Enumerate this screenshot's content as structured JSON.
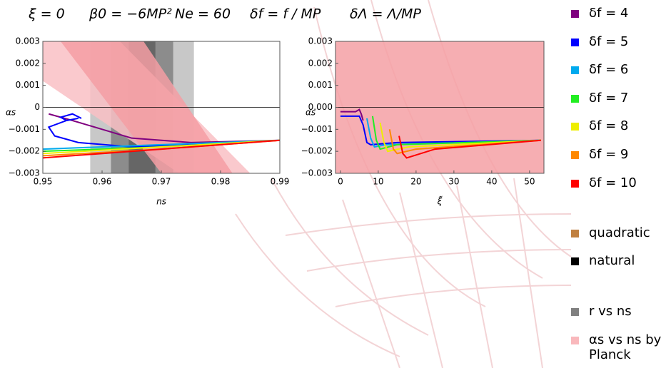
{
  "header": {
    "items": [
      "ξ = 0",
      "β0 = −6MP²",
      "Ne = 60",
      "δf = f / MP",
      "δΛ = Λ/MP"
    ]
  },
  "chart_data": [
    {
      "type": "line",
      "x_label": "ns",
      "y_label": "αs",
      "xlim": [
        0.95,
        0.99
      ],
      "ylim": [
        -0.003,
        0.003
      ],
      "xticks": [
        0.95,
        0.96,
        0.97,
        0.98,
        0.99
      ],
      "yticks": [
        {
          "value": -0.003,
          "label": "−0.003"
        },
        {
          "value": -0.002,
          "label": "−0.002"
        },
        {
          "value": -0.001,
          "label": "−0.001"
        },
        0,
        0.001,
        0.002,
        0.003
      ],
      "regions": [
        {
          "color": "#f9c0c4",
          "x": [
            0.95,
            0.963,
            0.985,
            0.973,
            0.95
          ],
          "y": [
            0.003,
            0.003,
            -0.003,
            -0.003,
            0.0012
          ]
        },
        {
          "color": "#f49ea3",
          "x": [
            0.953,
            0.967,
            0.982,
            0.97
          ],
          "y": [
            0.003,
            0.003,
            -0.003,
            -0.003
          ]
        }
      ],
      "vbands": [
        {
          "color": "#c8c8c8",
          "x": [
            0.958,
            0.9755
          ]
        },
        {
          "color": "#8c8c8c",
          "x": [
            0.9615,
            0.972
          ]
        },
        {
          "color": "#666666",
          "x": [
            0.9645,
            0.969
          ]
        }
      ],
      "series": [
        {
          "name": "δf = 4",
          "color": "#800080",
          "x": [
            0.951,
            0.955,
            0.96,
            0.965,
            0.975,
            0.99
          ],
          "values": [
            -0.0003,
            -0.0006,
            -0.001,
            -0.0014,
            -0.0016,
            -0.0015
          ]
        },
        {
          "name": "δf = 5",
          "color": "#0000ff",
          "x": [
            0.9565,
            0.955,
            0.953,
            0.954,
            0.956,
            0.954,
            0.951,
            0.952,
            0.956,
            0.965,
            0.975,
            0.99
          ],
          "values": [
            -0.0005,
            -0.0003,
            -0.00045,
            -0.0006,
            -0.0005,
            -0.0006,
            -0.0009,
            -0.0013,
            -0.0016,
            -0.0018,
            -0.0017,
            -0.0015
          ]
        },
        {
          "name": "δf = 6",
          "color": "#00aaee",
          "x": [
            0.95,
            0.97,
            0.99
          ],
          "values": [
            -0.0019,
            -0.0017,
            -0.0015
          ]
        },
        {
          "name": "δf = 7",
          "color": "#22ee22",
          "x": [
            0.95,
            0.97,
            0.99
          ],
          "values": [
            -0.002,
            -0.0018,
            -0.0015
          ]
        },
        {
          "name": "δf = 8",
          "color": "#eeee00",
          "x": [
            0.95,
            0.97,
            0.99
          ],
          "values": [
            -0.0021,
            -0.0018,
            -0.0015
          ]
        },
        {
          "name": "δf = 9",
          "color": "#ff8800",
          "x": [
            0.95,
            0.97,
            0.99
          ],
          "values": [
            -0.0022,
            -0.0019,
            -0.0015
          ]
        },
        {
          "name": "δf = 10",
          "color": "#ff0000",
          "x": [
            0.95,
            0.97,
            0.99
          ],
          "values": [
            -0.0023,
            -0.0019,
            -0.0015
          ]
        }
      ]
    },
    {
      "type": "line",
      "x_label": "ξ̃",
      "y_label": "αs",
      "xlim": [
        -1.3,
        53.8
      ],
      "ylim": [
        -0.003,
        0.003
      ],
      "xticks": [
        0,
        10,
        20,
        30,
        40,
        50
      ],
      "yticks": [
        {
          "value": -0.003,
          "label": "−0.003"
        },
        {
          "value": -0.002,
          "label": "−0.002"
        },
        {
          "value": -0.001,
          "label": "−0.001"
        },
        {
          "value": 0,
          "label": "0.000"
        },
        0.001,
        0.002,
        0.003
      ],
      "regions": [
        {
          "color": "#f4a0a4",
          "x": [
            -1.3,
            53.8,
            53.8,
            -1.3
          ],
          "y": [
            0.003,
            0.003,
            -0.003,
            -0.003
          ]
        }
      ],
      "series": [
        {
          "color": "#800080",
          "x": [
            0,
            4,
            5,
            5.5,
            6
          ],
          "values": [
            -0.0002,
            -0.0002,
            -0.0001,
            -0.0003,
            -0.0006
          ]
        },
        {
          "color": "#0000ff",
          "x": [
            0,
            5,
            6,
            7,
            8,
            15,
            53
          ],
          "values": [
            -0.0004,
            -0.0004,
            -0.0008,
            -0.0016,
            -0.0017,
            -0.0016,
            -0.0015
          ]
        },
        {
          "color": "#00aaee",
          "x": [
            7,
            8,
            9,
            12,
            53
          ],
          "values": [
            -0.0005,
            -0.0014,
            -0.0018,
            -0.0017,
            -0.0015
          ]
        },
        {
          "color": "#22ee22",
          "x": [
            8.5,
            9.5,
            10.5,
            15,
            53
          ],
          "values": [
            -0.0004,
            -0.0015,
            -0.0019,
            -0.0017,
            -0.0015
          ]
        },
        {
          "color": "#eeee00",
          "x": [
            10.5,
            11.5,
            12.5,
            18,
            53
          ],
          "values": [
            -0.0007,
            -0.0016,
            -0.002,
            -0.0018,
            -0.0015
          ]
        },
        {
          "color": "#ff8800",
          "x": [
            13,
            14,
            15,
            20,
            53
          ],
          "values": [
            -0.001,
            -0.0019,
            -0.0021,
            -0.0019,
            -0.0015
          ]
        },
        {
          "color": "#ff0000",
          "x": [
            15.5,
            16.5,
            17.5,
            25,
            53
          ],
          "values": [
            -0.0013,
            -0.0021,
            -0.0023,
            -0.0019,
            -0.0015
          ]
        }
      ]
    }
  ],
  "legend_extra": [
    {
      "label": "quadratic",
      "color": "#c08040"
    },
    {
      "label": "natural",
      "color": "#000000"
    },
    {
      "label": "r vs ns",
      "color": "#808080"
    },
    {
      "label": "αs vs ns by Planck",
      "color": "#f9b8bc"
    }
  ]
}
